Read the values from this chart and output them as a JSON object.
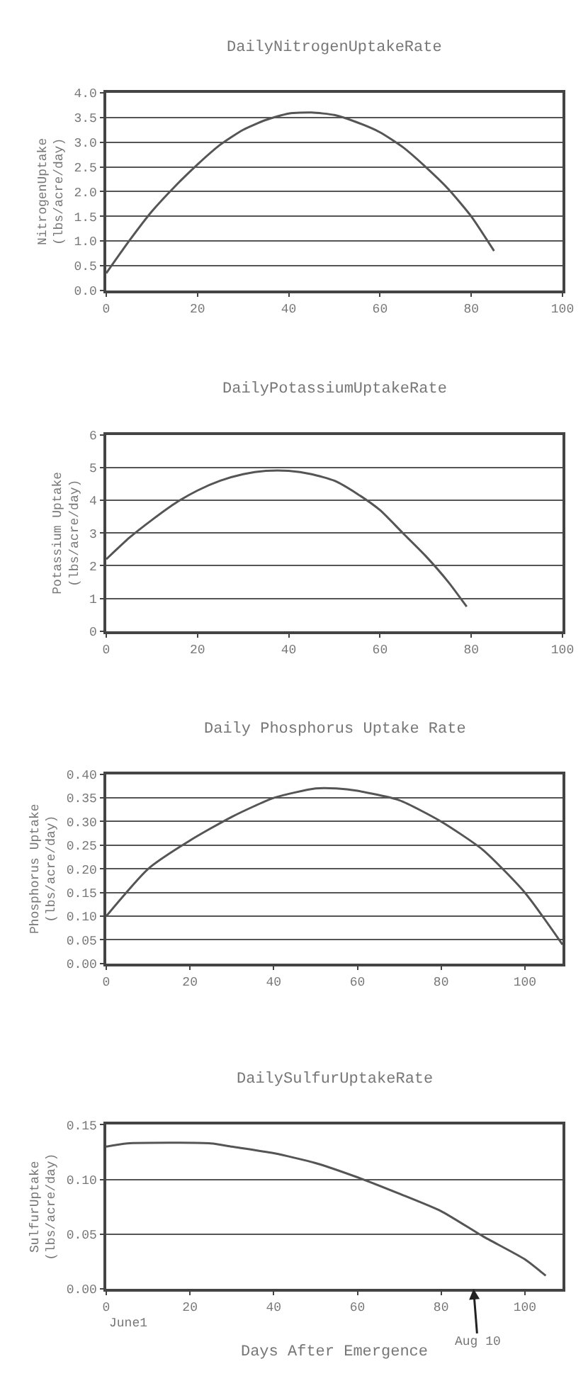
{
  "chart_data": [
    {
      "type": "line",
      "title": "DailyNitrogenUptakeRate",
      "ylabel": "NitrogenUptake (lbs/acre/day)",
      "grid": "y",
      "marker": "none",
      "line_style": "solid",
      "xlim": [
        0,
        100
      ],
      "xticks": [
        0,
        20,
        40,
        60,
        80,
        100
      ],
      "ylim": [
        0,
        4
      ],
      "yticks": [
        {
          "value": 0,
          "label": "0.0"
        },
        {
          "value": 0.5,
          "label": "0.5"
        },
        {
          "value": 1,
          "label": "1.0"
        },
        {
          "value": 1.5,
          "label": "1.5"
        },
        {
          "value": 2,
          "label": "2.0"
        },
        {
          "value": 2.5,
          "label": "2.5"
        },
        {
          "value": 3,
          "label": "3.0"
        },
        {
          "value": 3.5,
          "label": "3.5"
        },
        {
          "value": 4,
          "label": "4.0"
        }
      ],
      "series": [
        {
          "color": "#555555",
          "x": [
            0,
            5,
            10,
            15,
            20,
            25,
            30,
            35,
            40,
            45,
            50,
            55,
            60,
            65,
            70,
            75,
            80,
            85
          ],
          "values": [
            0.35,
            1.0,
            1.6,
            2.1,
            2.55,
            2.95,
            3.25,
            3.45,
            3.58,
            3.6,
            3.55,
            3.4,
            3.2,
            2.9,
            2.5,
            2.05,
            1.5,
            0.8
          ]
        }
      ]
    },
    {
      "type": "line",
      "title": "DailyPotassiumUptakeRate",
      "ylabel": "Potassium Uptake (lbs/acre/day)",
      "grid": "y",
      "marker": "none",
      "line_style": "solid",
      "xlim": [
        0,
        100
      ],
      "xticks": [
        0,
        20,
        40,
        60,
        80,
        100
      ],
      "ylim": [
        0,
        6
      ],
      "yticks": [
        0,
        1,
        2,
        3,
        4,
        5,
        6
      ],
      "series": [
        {
          "color": "#555555",
          "x": [
            0,
            5,
            10,
            15,
            20,
            25,
            30,
            35,
            40,
            45,
            50,
            55,
            60,
            65,
            70,
            75,
            79
          ],
          "values": [
            2.2,
            2.85,
            3.4,
            3.9,
            4.3,
            4.6,
            4.8,
            4.9,
            4.9,
            4.8,
            4.6,
            4.2,
            3.7,
            3.0,
            2.3,
            1.5,
            0.75
          ]
        }
      ]
    },
    {
      "type": "line",
      "title": "Daily Phosphorus Uptake Rate",
      "ylabel": "Phosphorus Uptake (lbs/acre/day)",
      "grid": "y",
      "marker": "none",
      "line_style": "solid",
      "xlim": [
        0,
        109
      ],
      "xticks": [
        0,
        20,
        40,
        60,
        80,
        100
      ],
      "ylim": [
        0,
        0.4
      ],
      "yticks": [
        {
          "value": 0,
          "label": "0.00"
        },
        {
          "value": 0.05,
          "label": "0.05"
        },
        {
          "value": 0.1,
          "label": "0.10"
        },
        {
          "value": 0.15,
          "label": "0.15"
        },
        {
          "value": 0.2,
          "label": "0.20"
        },
        {
          "value": 0.25,
          "label": "0.25"
        },
        {
          "value": 0.3,
          "label": "0.30"
        },
        {
          "value": 0.35,
          "label": "0.35"
        },
        {
          "value": 0.4,
          "label": "0.40"
        }
      ],
      "series": [
        {
          "color": "#555555",
          "x": [
            0,
            10,
            20,
            30,
            40,
            50,
            55,
            60,
            70,
            80,
            90,
            100,
            109
          ],
          "values": [
            0.1,
            0.2,
            0.26,
            0.31,
            0.35,
            0.37,
            0.37,
            0.365,
            0.345,
            0.3,
            0.24,
            0.15,
            0.04
          ]
        }
      ]
    },
    {
      "type": "line",
      "title": "DailySulfurUptakeRate",
      "ylabel": "SulfurUptake (lbs/acre/day)",
      "xlabel": "Days After Emergence",
      "grid": "y",
      "marker": "none",
      "line_style": "solid",
      "xlim": [
        0,
        109
      ],
      "xticks": [
        0,
        20,
        40,
        60,
        80,
        100
      ],
      "ylim": [
        0,
        0.15
      ],
      "yticks": [
        {
          "value": 0,
          "label": "0.00"
        },
        {
          "value": 0.05,
          "label": "0.05"
        },
        {
          "value": 0.1,
          "label": "0.10"
        },
        {
          "value": 0.15,
          "label": "0.15"
        }
      ],
      "annotations": [
        "June1",
        "Aug 10"
      ],
      "series": [
        {
          "color": "#555555",
          "x": [
            0,
            5,
            25,
            30,
            40,
            50,
            60,
            70,
            80,
            90,
            100,
            105
          ],
          "values": [
            0.13,
            0.133,
            0.133,
            0.13,
            0.124,
            0.115,
            0.102,
            0.087,
            0.071,
            0.048,
            0.027,
            0.012
          ]
        }
      ]
    }
  ]
}
